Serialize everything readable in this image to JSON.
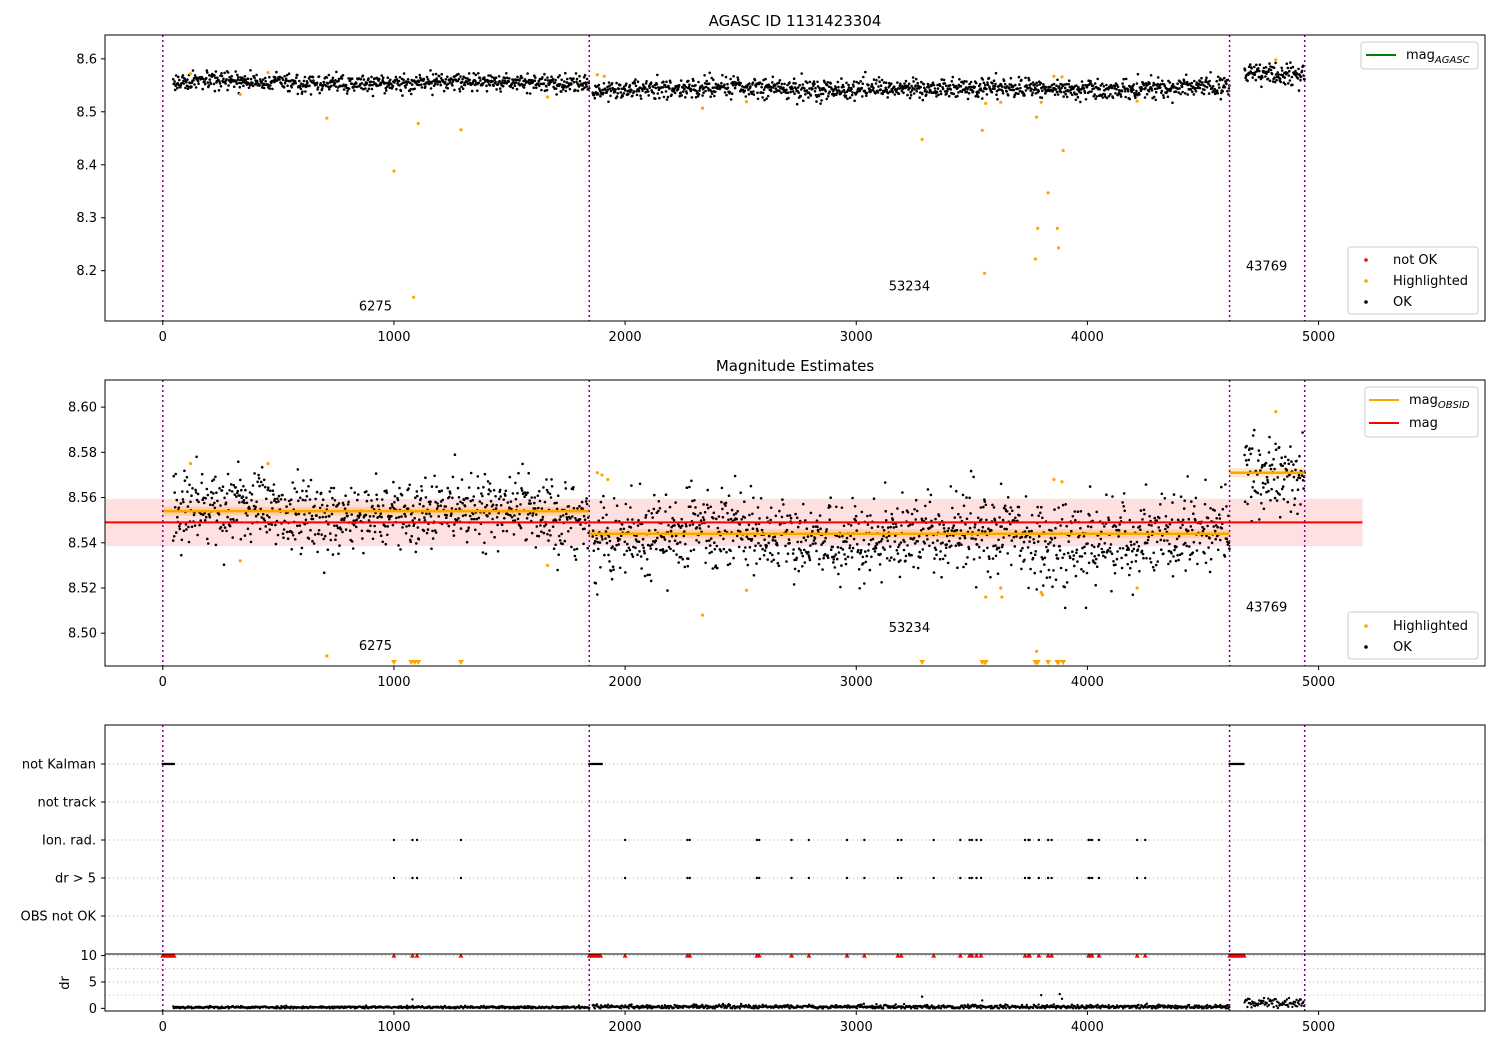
{
  "figure": {
    "panel1_title": "AGASC ID 1131423304",
    "panel2_title": "Magnitude Estimates"
  },
  "colors": {
    "ok": "#000000",
    "highlighted": "#ffa500",
    "not_ok": "#ff0000",
    "mag_agasc": "#008000",
    "mag_obsid": "#ffa500",
    "mag": "#ff0000",
    "obsid_boundary": "#800080"
  },
  "chart_data": [
    {
      "type": "scatter",
      "title": "AGASC ID 1131423304",
      "xlabel": "",
      "ylabel": "",
      "xlim": [
        -250,
        5720
      ],
      "ylim": [
        8.105,
        8.645
      ],
      "x_ticks": [
        0,
        1000,
        2000,
        3000,
        4000,
        5000
      ],
      "y_ticks": [
        8.2,
        8.3,
        8.4,
        8.5,
        8.6
      ],
      "grid": false,
      "obsid_boundaries": [
        0,
        1845,
        4615,
        4940
      ],
      "obsid_labels": [
        {
          "text": "6275",
          "x": 920,
          "y": 8.125
        },
        {
          "text": "53234",
          "x": 3230,
          "y": 8.163
        },
        {
          "text": "43769",
          "x": 4775,
          "y": 8.2
        }
      ],
      "legend_upper": [
        {
          "label": "mag",
          "sub": "AGASC",
          "color": "#008000",
          "kind": "line"
        }
      ],
      "legend_lower": [
        {
          "label": "not OK",
          "color": "#ff0000",
          "kind": "point"
        },
        {
          "label": "Highlighted",
          "color": "#ffa500",
          "kind": "point"
        },
        {
          "label": "OK",
          "color": "#000000",
          "kind": "point"
        }
      ],
      "ok_bands": [
        {
          "x": [
            45,
            1845
          ],
          "center": 8.555,
          "spread": 0.008
        },
        {
          "x": [
            1860,
            4615
          ],
          "center": 8.544,
          "spread": 0.009
        },
        {
          "x": [
            4680,
            4940
          ],
          "center": 8.572,
          "spread": 0.01
        }
      ],
      "highlighted_points": [
        {
          "x": 120,
          "y": 8.572
        },
        {
          "x": 335,
          "y": 8.533
        },
        {
          "x": 455,
          "y": 8.574
        },
        {
          "x": 710,
          "y": 8.488
        },
        {
          "x": 1000,
          "y": 8.388
        },
        {
          "x": 1085,
          "y": 8.15
        },
        {
          "x": 1105,
          "y": 8.478
        },
        {
          "x": 1290,
          "y": 8.466
        },
        {
          "x": 1665,
          "y": 8.528
        },
        {
          "x": 1880,
          "y": 8.57
        },
        {
          "x": 1910,
          "y": 8.567
        },
        {
          "x": 2335,
          "y": 8.507
        },
        {
          "x": 2525,
          "y": 8.519
        },
        {
          "x": 3285,
          "y": 8.448
        },
        {
          "x": 3545,
          "y": 8.465
        },
        {
          "x": 3555,
          "y": 8.195
        },
        {
          "x": 3560,
          "y": 8.516
        },
        {
          "x": 3625,
          "y": 8.518
        },
        {
          "x": 3775,
          "y": 8.222
        },
        {
          "x": 3780,
          "y": 8.49
        },
        {
          "x": 3785,
          "y": 8.28
        },
        {
          "x": 3800,
          "y": 8.518
        },
        {
          "x": 3830,
          "y": 8.347
        },
        {
          "x": 3855,
          "y": 8.567
        },
        {
          "x": 3870,
          "y": 8.28
        },
        {
          "x": 3875,
          "y": 8.243
        },
        {
          "x": 3890,
          "y": 8.566
        },
        {
          "x": 3895,
          "y": 8.427
        },
        {
          "x": 4215,
          "y": 8.52
        },
        {
          "x": 4815,
          "y": 8.598
        }
      ]
    },
    {
      "type": "scatter",
      "title": "Magnitude Estimates",
      "xlabel": "",
      "ylabel": "",
      "xlim": [
        -250,
        5720
      ],
      "ylim": [
        8.4855,
        8.612
      ],
      "x_ticks": [
        0,
        1000,
        2000,
        3000,
        4000,
        5000
      ],
      "y_ticks": [
        8.5,
        8.52,
        8.54,
        8.56,
        8.58,
        8.6
      ],
      "y_tick_labels": [
        "8.50",
        "8.52",
        "8.54",
        "8.56",
        "8.58",
        "8.60"
      ],
      "grid": false,
      "obsid_boundaries": [
        0,
        1845,
        4615,
        4940
      ],
      "obsid_labels": [
        {
          "text": "6275",
          "x": 920,
          "y": 8.4925
        },
        {
          "text": "53234",
          "x": 3230,
          "y": 8.5005
        },
        {
          "text": "43769",
          "x": 4775,
          "y": 8.5095
        }
      ],
      "legend_upper": [
        {
          "label": "mag",
          "sub": "OBSID",
          "color": "#ffa500",
          "kind": "line"
        },
        {
          "label": "mag",
          "sub": "",
          "color": "#ff0000",
          "kind": "line"
        }
      ],
      "legend_lower": [
        {
          "label": "Highlighted",
          "color": "#ffa500",
          "kind": "point"
        },
        {
          "label": "OK",
          "color": "#000000",
          "kind": "point"
        }
      ],
      "mag": {
        "value": 8.549,
        "band": [
          8.5385,
          8.5595
        ],
        "x": [
          -250,
          5190
        ]
      },
      "mag_obsid": [
        {
          "x": [
            0,
            1845
          ],
          "value": 8.554,
          "band": [
            8.552,
            8.556
          ]
        },
        {
          "x": [
            1845,
            4615
          ],
          "value": 8.544,
          "band": [
            8.542,
            8.546
          ]
        },
        {
          "x": [
            4615,
            4940
          ],
          "value": 8.571,
          "band": [
            8.569,
            8.573
          ]
        }
      ],
      "ok_bands": [
        {
          "x": [
            45,
            1845
          ],
          "center": 8.553,
          "spread": 0.008
        },
        {
          "x": [
            1860,
            4615
          ],
          "center": 8.543,
          "spread": 0.009
        },
        {
          "x": [
            4680,
            4940
          ],
          "center": 8.571,
          "spread": 0.009
        }
      ],
      "highlighted_points": [
        {
          "x": 120,
          "y": 8.575
        },
        {
          "x": 335,
          "y": 8.532
        },
        {
          "x": 455,
          "y": 8.575
        },
        {
          "x": 710,
          "y": 8.49
        },
        {
          "x": 1665,
          "y": 8.53
        },
        {
          "x": 1880,
          "y": 8.571
        },
        {
          "x": 1900,
          "y": 8.57
        },
        {
          "x": 1925,
          "y": 8.568
        },
        {
          "x": 2335,
          "y": 8.508
        },
        {
          "x": 2525,
          "y": 8.519
        },
        {
          "x": 3560,
          "y": 8.516
        },
        {
          "x": 3625,
          "y": 8.52
        },
        {
          "x": 3630,
          "y": 8.516
        },
        {
          "x": 3780,
          "y": 8.492
        },
        {
          "x": 3800,
          "y": 8.518
        },
        {
          "x": 3805,
          "y": 8.517
        },
        {
          "x": 3855,
          "y": 8.568
        },
        {
          "x": 3890,
          "y": 8.567
        },
        {
          "x": 4215,
          "y": 8.52
        },
        {
          "x": 4815,
          "y": 8.598
        }
      ],
      "off_scale_markers_x": [
        1000,
        1075,
        1090,
        1105,
        1290,
        3285,
        3545,
        3555,
        3560,
        3775,
        3780,
        3785,
        3830,
        3870,
        3875,
        3895
      ]
    },
    {
      "type": "scatter",
      "title": "",
      "xlabel": "",
      "ylabel": "",
      "xlim": [
        -250,
        5720
      ],
      "grid": "horizontal-dotted",
      "obsid_boundaries": [
        0,
        1845,
        4615,
        4940
      ],
      "flag_rows": [
        "not Kalman",
        "not track",
        "Ion. rad.",
        "dr > 5",
        "OBS not OK"
      ],
      "flag_events": {
        "not Kalman": [
          [
            0,
            50
          ],
          [
            1845,
            1900
          ],
          [
            4615,
            4680
          ]
        ],
        "not track": [],
        "Ion. rad.": [
          1000,
          1080,
          1100,
          1290,
          2000,
          2270,
          2280,
          2570,
          2580,
          2720,
          2795,
          2960,
          3035,
          3180,
          3195,
          3335,
          3450,
          3490,
          3500,
          3520,
          3540,
          3730,
          3745,
          3750,
          3790,
          3830,
          3845,
          4005,
          4010,
          4020,
          4050,
          4215,
          4250
        ]
      }
    },
    {
      "type": "scatter",
      "title": "",
      "xlabel": "",
      "ylabel": "dr",
      "xlim": [
        -250,
        5720
      ],
      "ylim": [
        -0.5,
        10.3
      ],
      "y_ticks": [
        0,
        5,
        10
      ],
      "x_ticks": [
        0,
        1000,
        2000,
        3000,
        4000,
        5000
      ],
      "grid": "horizontal-dotted",
      "obsid_boundaries": [
        0,
        1845,
        4615,
        4940
      ],
      "dr_bands": [
        {
          "x": [
            45,
            1845
          ],
          "center": 0.2,
          "spread": 0.12
        },
        {
          "x": [
            1860,
            4615
          ],
          "center": 0.3,
          "spread": 0.2
        },
        {
          "x": [
            4680,
            4940
          ],
          "center": 1.0,
          "spread": 0.45
        }
      ],
      "dr_outliers": [
        {
          "x": 1080,
          "y": 1.7
        },
        {
          "x": 3285,
          "y": 2.2
        },
        {
          "x": 3545,
          "y": 1.5
        },
        {
          "x": 3800,
          "y": 2.5
        },
        {
          "x": 3880,
          "y": 2.7
        },
        {
          "x": 3890,
          "y": 1.8
        }
      ],
      "capped_value": 10,
      "capped_ranges": [
        [
          0,
          50
        ],
        [
          1845,
          1900
        ],
        [
          4615,
          4680
        ]
      ],
      "capped_points": [
        1000,
        1080,
        1100,
        1290,
        2000,
        2270,
        2280,
        2570,
        2580,
        2720,
        2795,
        2960,
        3035,
        3180,
        3195,
        3335,
        3450,
        3490,
        3500,
        3520,
        3540,
        3730,
        3745,
        3750,
        3790,
        3830,
        3845,
        4005,
        4010,
        4020,
        4050,
        4215,
        4250
      ]
    }
  ]
}
